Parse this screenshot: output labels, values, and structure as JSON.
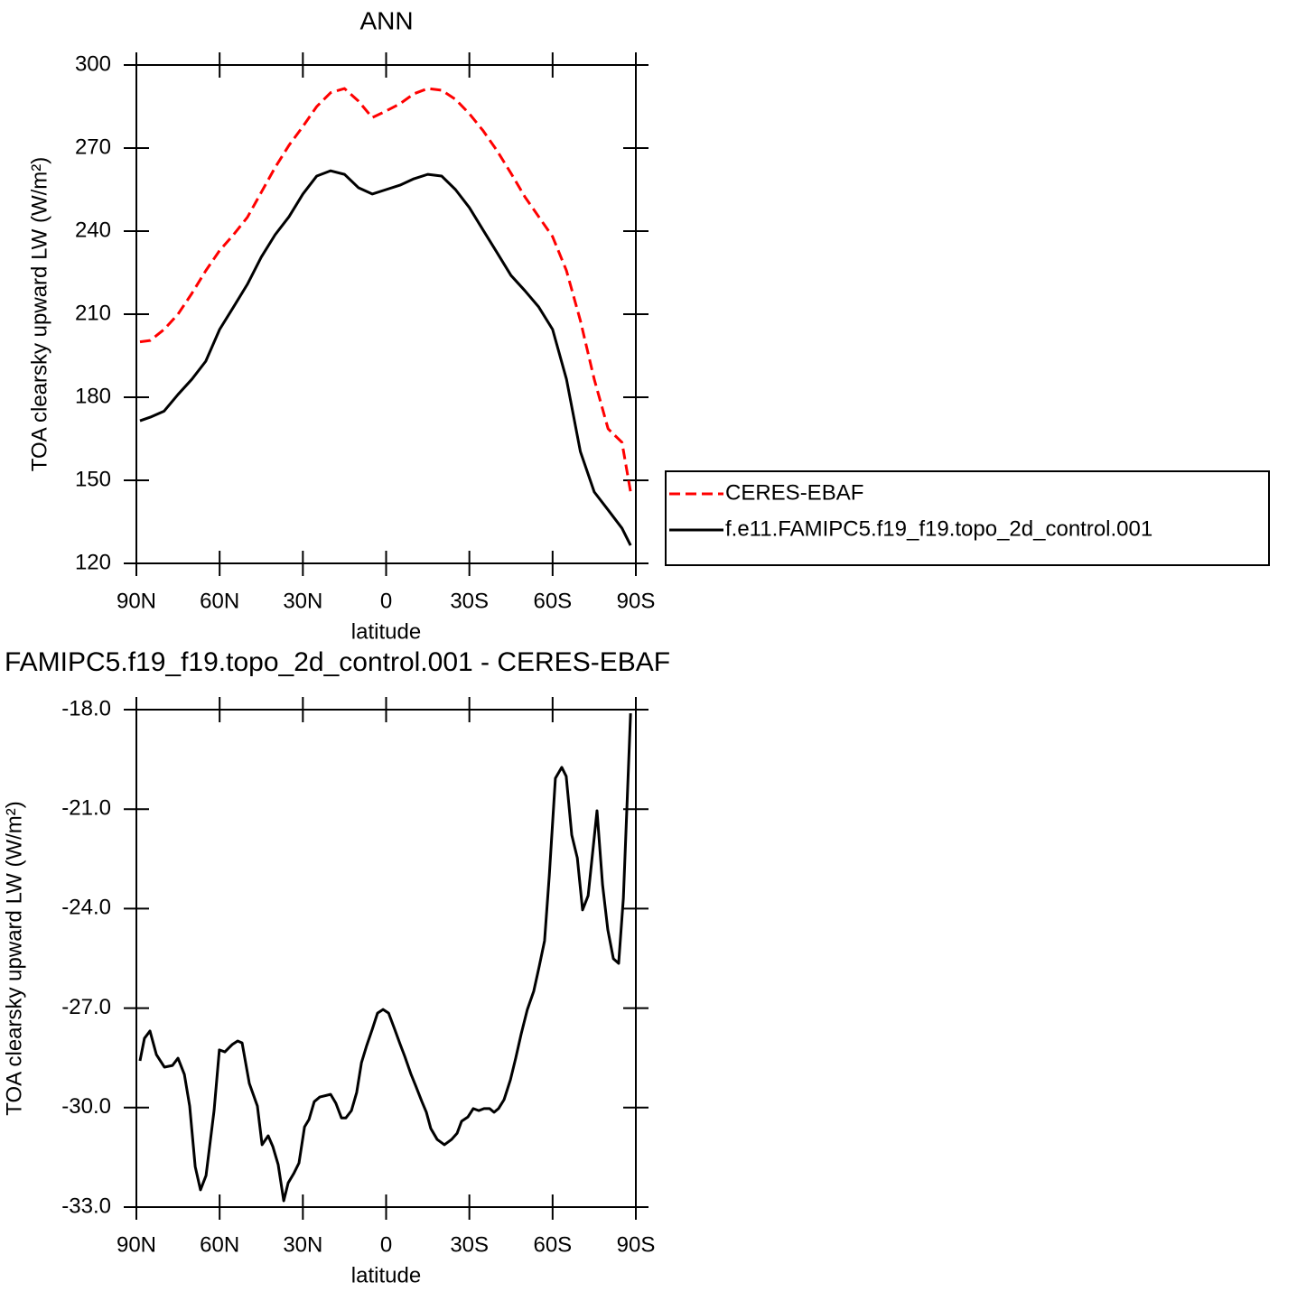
{
  "chart_data": [
    {
      "type": "line",
      "title": "ANN",
      "x": [
        88.7,
        85,
        80,
        75,
        70,
        65,
        60,
        55,
        50,
        45,
        40,
        35,
        30,
        25,
        20,
        15,
        10,
        5,
        0,
        -5,
        -10,
        -15,
        -20,
        -25,
        -30,
        -35,
        -40,
        -45,
        -50,
        -55,
        -60,
        -65,
        -70,
        -75,
        -80,
        -85,
        -88.1
      ],
      "series": [
        {
          "name": "CERES-EBAF",
          "color": "#ff0000",
          "dash": true,
          "values": [
            200,
            200.5,
            204.5,
            210,
            217.5,
            225.7,
            233,
            238.7,
            245,
            254,
            263,
            271,
            277.8,
            285,
            290,
            291.5,
            287,
            281,
            283.4,
            286,
            289.6,
            291.5,
            290.9,
            287.6,
            282.4,
            276.2,
            269,
            260.9,
            252.4,
            245.2,
            238,
            225.7,
            207.7,
            186.5,
            168.6,
            163.7,
            145.8
          ]
        },
        {
          "name": "f.e11.FAMIPC5.f19_f19.topo_2d_control.001",
          "color": "#000000",
          "dash": false,
          "values": [
            171.5,
            172.8,
            175,
            181,
            186.5,
            193,
            204.5,
            212.6,
            220.8,
            230.6,
            238.7,
            245.2,
            253.4,
            259.9,
            261.8,
            260.5,
            255.7,
            253.4,
            255,
            256.6,
            258.9,
            260.5,
            259.9,
            255,
            248.5,
            240.3,
            232.2,
            224,
            218.5,
            212.6,
            204.5,
            186.5,
            160.4,
            145.8,
            139.3,
            132.7,
            126.5
          ]
        }
      ],
      "xlabel": "latitude",
      "ylabel": "TOA clearsky upward LW (W/m²)",
      "xlim": [
        90,
        -90
      ],
      "xticks": [
        {
          "value": 90,
          "label": "90N"
        },
        {
          "value": 60,
          "label": "60N"
        },
        {
          "value": 30,
          "label": "30N"
        },
        0,
        {
          "value": -30,
          "label": "30S"
        },
        {
          "value": -60,
          "label": "60S"
        },
        {
          "value": -90,
          "label": "90S"
        }
      ],
      "ylim": [
        120,
        300
      ],
      "yticks": [
        120,
        150,
        180,
        210,
        240,
        270,
        300
      ],
      "legend": "outside-right"
    },
    {
      "type": "line",
      "title": "FAMIPC5.f19_f19.topo_2d_control.001 - CERES-EBAF",
      "x": [
        88.7,
        87.1,
        85.1,
        82.8,
        79.9,
        77.0,
        75.0,
        72.7,
        70.8,
        68.8,
        66.9,
        64.9,
        62.0,
        60.1,
        58.1,
        55.5,
        53.5,
        51.9,
        49.3,
        46.4,
        44.7,
        42.5,
        40.8,
        38.9,
        36.9,
        35.3,
        33.3,
        31.4,
        29.4,
        27.8,
        25.9,
        23.9,
        20.0,
        18.1,
        16.1,
        14.5,
        12.5,
        10.6,
        8.9,
        7.0,
        5.0,
        3.1,
        1.1,
        -0.9,
        -3.1,
        -5.1,
        -6.7,
        -9.0,
        -10.6,
        -12.9,
        -14.5,
        -16.1,
        -18.4,
        -21.0,
        -23.6,
        -25.6,
        -27.2,
        -29.5,
        -31.4,
        -33.4,
        -35.3,
        -37.3,
        -38.9,
        -40.5,
        -42.5,
        -44.8,
        -46.7,
        -48.7,
        -50.9,
        -53.2,
        -55.2,
        -57.1,
        -58.8,
        -61.0,
        -63.3,
        -64.9,
        -66.9,
        -68.9,
        -70.8,
        -72.8,
        -74.4,
        -76.0,
        -78.0,
        -79.9,
        -81.9,
        -83.8,
        -85.5,
        -88.1
      ],
      "series": [
        {
          "color": "#000000",
          "dash": false,
          "values": [
            -28.59,
            -27.91,
            -27.69,
            -28.4,
            -28.78,
            -28.73,
            -28.51,
            -29.0,
            -29.95,
            -31.78,
            -32.48,
            -32.05,
            -30.09,
            -28.26,
            -28.32,
            -28.1,
            -27.99,
            -28.05,
            -29.27,
            -29.95,
            -31.12,
            -30.85,
            -31.18,
            -31.72,
            -32.81,
            -32.27,
            -31.99,
            -31.67,
            -30.58,
            -30.36,
            -29.82,
            -29.68,
            -29.6,
            -29.87,
            -30.31,
            -30.31,
            -30.09,
            -29.54,
            -28.65,
            -28.13,
            -27.64,
            -27.15,
            -27.04,
            -27.15,
            -27.64,
            -28.1,
            -28.45,
            -29.0,
            -29.33,
            -29.82,
            -30.14,
            -30.63,
            -30.96,
            -31.12,
            -30.96,
            -30.77,
            -30.41,
            -30.28,
            -30.03,
            -30.09,
            -30.03,
            -30.03,
            -30.14,
            -30.03,
            -29.76,
            -29.16,
            -28.51,
            -27.77,
            -27.04,
            -26.49,
            -25.73,
            -24.97,
            -23.01,
            -20.07,
            -19.74,
            -20.01,
            -21.78,
            -22.47,
            -24.04,
            -23.61,
            -22.33,
            -21.05,
            -23.28,
            -24.64,
            -25.51,
            -25.65,
            -23.69,
            -18.11
          ]
        }
      ],
      "xlabel": "latitude",
      "ylabel": "TOA clearsky upward LW (W/m²)",
      "xlim": [
        90,
        -90
      ],
      "xticks": [
        {
          "value": 90,
          "label": "90N"
        },
        {
          "value": 60,
          "label": "60N"
        },
        {
          "value": 30,
          "label": "30N"
        },
        0,
        {
          "value": -30,
          "label": "30S"
        },
        {
          "value": -60,
          "label": "60S"
        },
        {
          "value": -90,
          "label": "90S"
        }
      ],
      "ylim": [
        -33,
        -18
      ],
      "yticks": [
        {
          "value": -33,
          "label": "-33.0"
        },
        {
          "value": -30,
          "label": "-30.0"
        },
        {
          "value": -27,
          "label": "-27.0"
        },
        {
          "value": -24,
          "label": "-24.0"
        },
        {
          "value": -21,
          "label": "-21.0"
        },
        {
          "value": -18,
          "label": "-18.0"
        }
      ]
    }
  ]
}
